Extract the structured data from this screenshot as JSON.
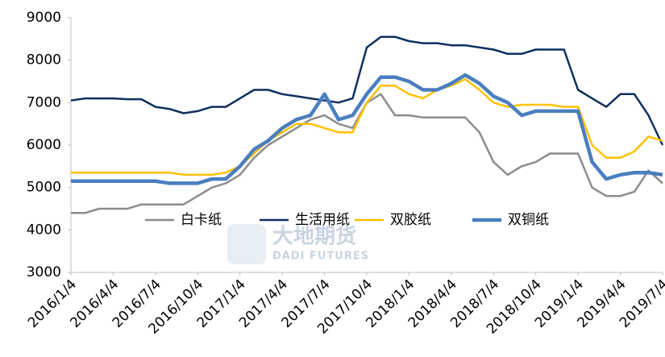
{
  "chart_data": {
    "type": "line",
    "categories": [
      "2016/1/4",
      null,
      null,
      "2016/4/4",
      null,
      null,
      "2016/7/4",
      null,
      null,
      "2016/10/4",
      null,
      null,
      "2017/1/4",
      null,
      null,
      "2017/4/4",
      null,
      null,
      "2017/7/4",
      null,
      null,
      "2017/10/4",
      null,
      null,
      "2018/1/4",
      null,
      null,
      "2018/4/4",
      null,
      null,
      "2018/7/4",
      null,
      null,
      "2018/10/4",
      null,
      null,
      "2019/1/4",
      null,
      null,
      "2019/4/4",
      null,
      null,
      "2019/7/4"
    ],
    "series": [
      {
        "name": "白卡纸",
        "color": "#8c8c8c",
        "values": [
          4400,
          4400,
          4500,
          4500,
          4500,
          4600,
          4600,
          4600,
          4600,
          4800,
          5000,
          5100,
          5300,
          5700,
          6000,
          6200,
          6400,
          6600,
          6700,
          6500,
          6400,
          7000,
          7200,
          6700,
          6700,
          6650,
          6650,
          6650,
          6650,
          6300,
          5600,
          5300,
          5500,
          5600,
          5800,
          5800,
          5800,
          5000,
          4800,
          4800,
          4900,
          5400,
          5100
        ]
      },
      {
        "name": "生活用纸",
        "color": "#0d2f5e",
        "values": [
          7050,
          7100,
          7100,
          7100,
          7080,
          7080,
          6900,
          6850,
          6750,
          6800,
          6900,
          6900,
          7100,
          7300,
          7300,
          7200,
          7150,
          7100,
          7050,
          7000,
          7100,
          8300,
          8550,
          8550,
          8450,
          8400,
          8400,
          8350,
          8350,
          8300,
          8250,
          8150,
          8150,
          8250,
          8250,
          8250,
          7300,
          7100,
          6900,
          7200,
          7200,
          6700,
          6000
        ]
      },
      {
        "name": "双胶纸",
        "color": "#ffc000",
        "values": [
          5350,
          5350,
          5350,
          5350,
          5350,
          5350,
          5350,
          5350,
          5300,
          5300,
          5300,
          5350,
          5500,
          5800,
          6100,
          6300,
          6500,
          6500,
          6400,
          6300,
          6300,
          7000,
          7400,
          7400,
          7200,
          7100,
          7300,
          7400,
          7550,
          7300,
          7000,
          6900,
          6950,
          6950,
          6950,
          6900,
          6900,
          6000,
          5700,
          5700,
          5850,
          6200,
          6100
        ]
      },
      {
        "name": "双铜纸",
        "color": "#4a7ebf",
        "values": [
          5150,
          5150,
          5150,
          5150,
          5150,
          5150,
          5150,
          5100,
          5100,
          5100,
          5200,
          5200,
          5500,
          5900,
          6100,
          6400,
          6600,
          6700,
          7200,
          6600,
          6700,
          7200,
          7600,
          7600,
          7500,
          7300,
          7300,
          7450,
          7650,
          7450,
          7150,
          7000,
          6700,
          6800,
          6800,
          6800,
          6800,
          5600,
          5200,
          5300,
          5350,
          5350,
          5300
        ]
      }
    ],
    "ylim": [
      3000,
      9000
    ],
    "yticks": [
      3000,
      4000,
      5000,
      6000,
      7000,
      8000,
      9000
    ],
    "grid": false,
    "legend": "bottom",
    "watermark": [
      "大地期货",
      "DADI FUTURES"
    ]
  }
}
